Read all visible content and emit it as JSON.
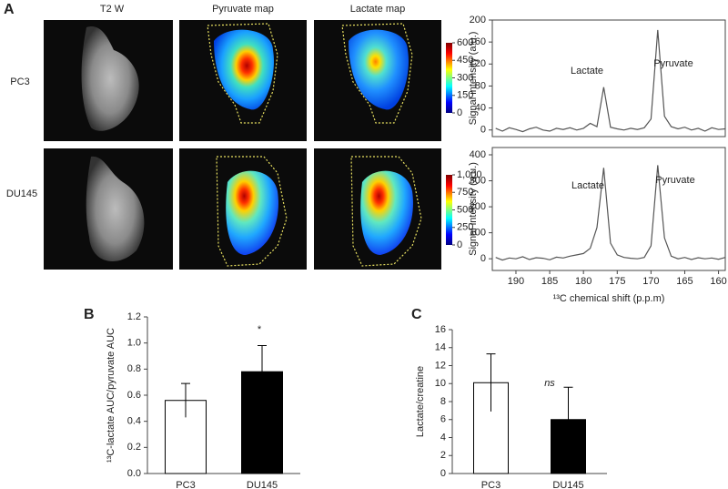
{
  "figure": {
    "panel_labels": [
      "A",
      "B",
      "C"
    ],
    "column_titles": [
      "T2 W",
      "Pyruvate map",
      "Lactate map"
    ],
    "row_labels": [
      "PC3",
      "DU145"
    ],
    "colorbars": [
      {
        "ticks": [
          0,
          150,
          300,
          450,
          600
        ]
      },
      {
        "ticks": [
          0,
          250,
          500,
          750,
          {
            "value": 1000,
            "label": "1,000"
          }
        ]
      }
    ]
  },
  "chart_data": [
    {
      "type": "line",
      "ylabel": "Signal intensity (a.u.)",
      "annotations": [
        "Lactate",
        "Pyruvate"
      ],
      "color": "#555555",
      "x": [
        193,
        192,
        191,
        190,
        189,
        188,
        187,
        186,
        185,
        184,
        183,
        182,
        181,
        180,
        179,
        178,
        177,
        176,
        175,
        174,
        173,
        172,
        171,
        170,
        169,
        168,
        167,
        166,
        165,
        164,
        163,
        162,
        161,
        160,
        159
      ],
      "values": [
        3,
        -2,
        4,
        1,
        -3,
        2,
        5,
        0,
        -2,
        3,
        1,
        4,
        0,
        3,
        12,
        6,
        78,
        5,
        2,
        0,
        3,
        1,
        4,
        20,
        182,
        25,
        6,
        2,
        5,
        0,
        3,
        -2,
        4,
        1,
        2
      ],
      "xlim": [
        193.5,
        159
      ],
      "ylim": [
        -12,
        200
      ],
      "yticks": [
        0,
        40,
        80,
        120,
        160,
        200
      ]
    },
    {
      "type": "line",
      "ylabel": "Signal intensity (a.u.)",
      "annotations": [
        "Lactate",
        "Pyruvate"
      ],
      "color": "#555555",
      "xlabel": "¹³C chemical shift (p.p.m)",
      "x": [
        193,
        192,
        191,
        190,
        189,
        188,
        187,
        186,
        185,
        184,
        183,
        182,
        181,
        180,
        179,
        178,
        177,
        176,
        175,
        174,
        173,
        172,
        171,
        170,
        169,
        168,
        167,
        166,
        165,
        164,
        163,
        162,
        161,
        160,
        159
      ],
      "values": [
        5,
        -5,
        3,
        0,
        8,
        -3,
        4,
        2,
        -4,
        6,
        3,
        10,
        15,
        20,
        40,
        120,
        350,
        60,
        15,
        5,
        2,
        0,
        5,
        50,
        360,
        80,
        10,
        0,
        5,
        -3,
        4,
        0,
        3,
        -2,
        5
      ],
      "xlim": [
        193.5,
        159
      ],
      "ylim": [
        -45,
        428
      ],
      "yticks": [
        0,
        100,
        200,
        300,
        400
      ],
      "xticks": [
        190,
        185,
        180,
        175,
        170,
        165,
        160
      ]
    },
    {
      "type": "bar",
      "ylabel": "¹³C-lactate  AUC/pyruvate AUC",
      "annotations": [
        "*"
      ],
      "categories": [
        "PC3",
        "DU145"
      ],
      "values": [
        0.56,
        0.78
      ],
      "errors": [
        0.13,
        0.2
      ],
      "colors": [
        "#ffffff",
        "#000000"
      ],
      "ylim": [
        0,
        1.2
      ],
      "yticks": [
        {
          "value": 0,
          "label": "0.0"
        },
        0.2,
        0.4,
        0.6,
        0.8,
        {
          "value": 1,
          "label": "1.0"
        },
        1.2
      ]
    },
    {
      "type": "bar",
      "ylabel": "Lactate/creatine",
      "annotations": [
        "ns"
      ],
      "categories": [
        "PC3",
        "DU145"
      ],
      "values": [
        10.1,
        6.0
      ],
      "errors": [
        3.2,
        3.6
      ],
      "colors": [
        "#ffffff",
        "#000000"
      ],
      "ylim": [
        0,
        16
      ],
      "yticks": [
        0,
        2,
        4,
        6,
        8,
        10,
        12,
        14,
        16
      ]
    }
  ]
}
